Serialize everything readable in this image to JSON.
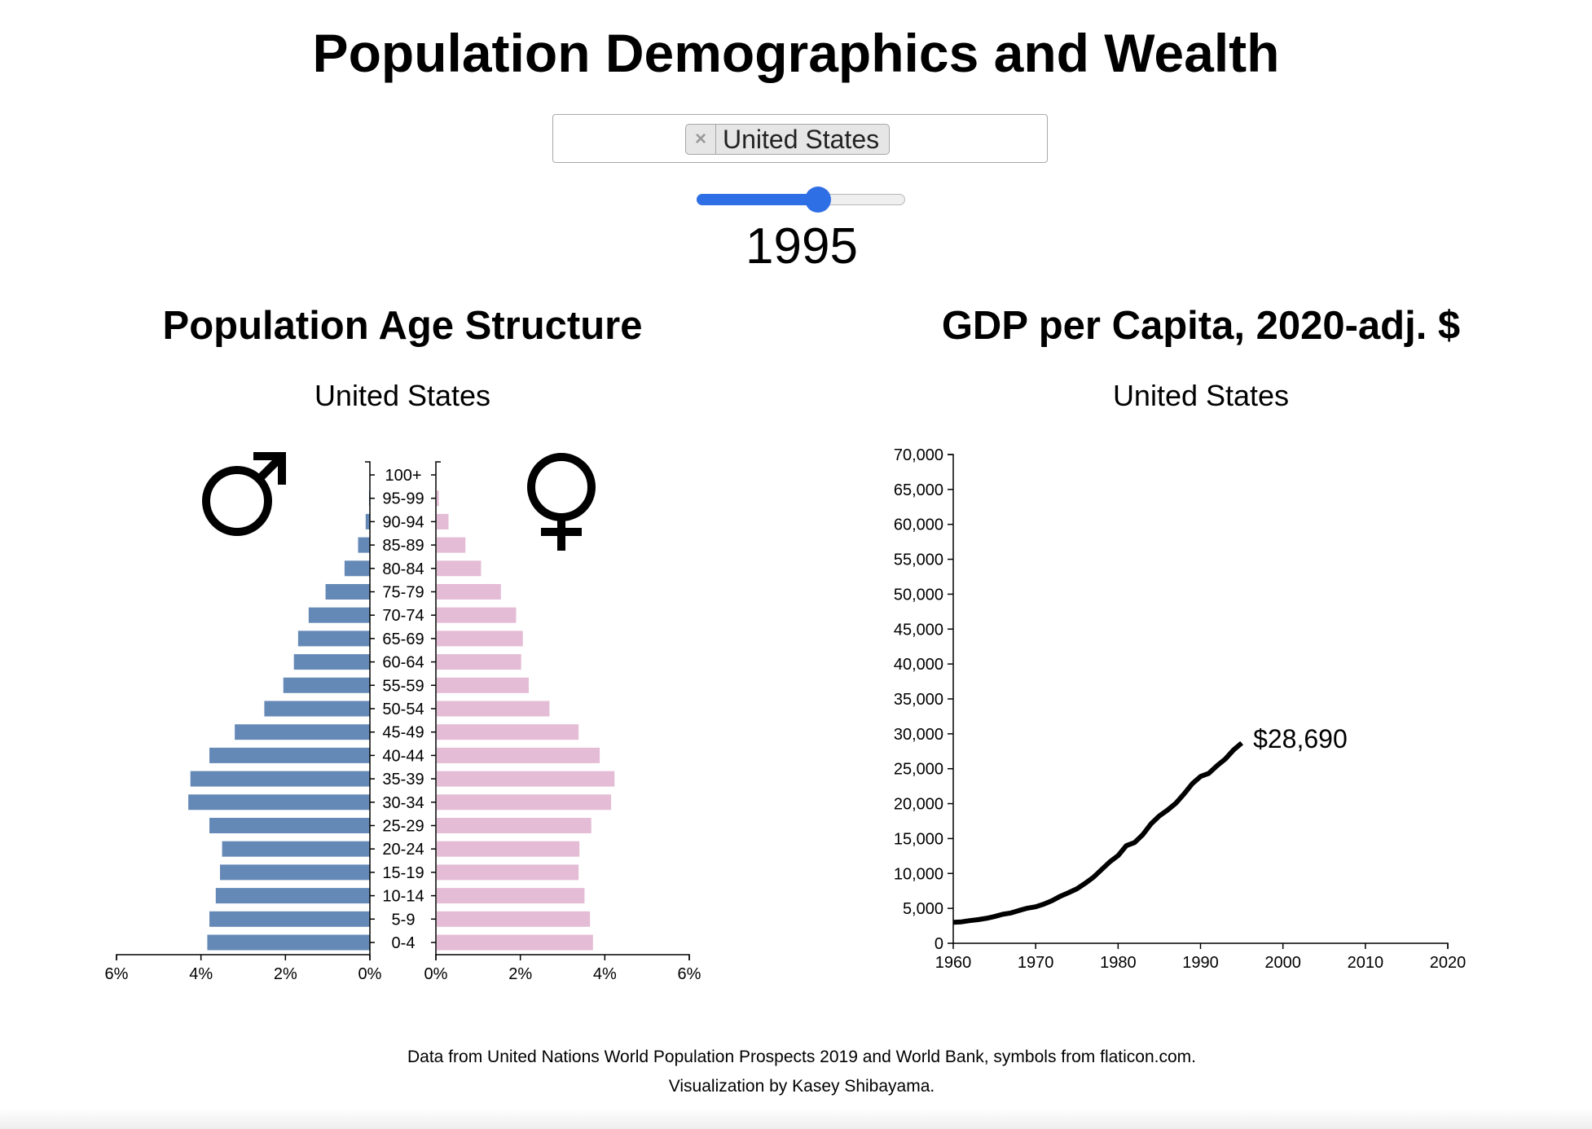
{
  "page": {
    "title": "Population Demographics and Wealth",
    "selected_country": "United States",
    "chip_remove_glyph": "×",
    "year": "1995",
    "slider": {
      "min": 1960,
      "max": 2020,
      "value": 1995
    }
  },
  "pyramid": {
    "title": "Population Age Structure",
    "subtitle": "United States",
    "male_symbol": "male-symbol-icon",
    "female_symbol": "female-symbol-icon"
  },
  "gdp": {
    "title": "GDP per Capita, 2020-adj. $",
    "subtitle": "United States",
    "end_label": "$28,690"
  },
  "footer": {
    "line1": "Data from United Nations World Population Prospects 2019 and World Bank, symbols from flaticon.com.",
    "line2": "Visualization by Kasey Shibayama."
  },
  "chart_data": [
    {
      "type": "bar",
      "title": "Population Age Structure",
      "subtitle": "United States",
      "categories": [
        "0-4",
        "5-9",
        "10-14",
        "15-19",
        "20-24",
        "25-29",
        "30-34",
        "35-39",
        "40-44",
        "45-49",
        "50-54",
        "55-59",
        "60-64",
        "65-69",
        "70-74",
        "75-79",
        "80-84",
        "85-89",
        "90-94",
        "95-99",
        "100+"
      ],
      "series": [
        {
          "name": "male",
          "values": [
            3.85,
            3.8,
            3.65,
            3.55,
            3.5,
            3.8,
            4.3,
            4.25,
            3.8,
            3.2,
            2.5,
            2.05,
            1.8,
            1.7,
            1.45,
            1.05,
            0.6,
            0.28,
            0.1,
            0.02,
            0.0
          ]
        },
        {
          "name": "female",
          "values": [
            3.7,
            3.63,
            3.5,
            3.36,
            3.38,
            3.66,
            4.13,
            4.21,
            3.86,
            3.36,
            2.67,
            2.18,
            2.0,
            2.04,
            1.88,
            1.52,
            1.05,
            0.68,
            0.28,
            0.05,
            0.0
          ]
        }
      ],
      "x_ticks": [
        "6%",
        "4%",
        "2%",
        "0%",
        "0%",
        "2%",
        "4%",
        "6%"
      ],
      "xlim": [
        0,
        6
      ],
      "colors": {
        "male": "#6589b6",
        "female": "#e4bcd5"
      }
    },
    {
      "type": "line",
      "title": "GDP per Capita, 2020-adj. $",
      "subtitle": "United States",
      "x": [
        1960,
        1961,
        1962,
        1963,
        1964,
        1965,
        1966,
        1967,
        1968,
        1969,
        1970,
        1971,
        1972,
        1973,
        1974,
        1975,
        1976,
        1977,
        1978,
        1979,
        1980,
        1981,
        1982,
        1983,
        1984,
        1985,
        1986,
        1987,
        1988,
        1989,
        1990,
        1991,
        1992,
        1993,
        1994,
        1995
      ],
      "y": [
        3000,
        3070,
        3240,
        3380,
        3570,
        3830,
        4150,
        4340,
        4700,
        5030,
        5230,
        5610,
        6110,
        6740,
        7240,
        7800,
        8590,
        9450,
        10560,
        11670,
        12550,
        13980,
        14430,
        15560,
        17120,
        18240,
        19080,
        20060,
        21400,
        22850,
        23890,
        24340,
        25420,
        26390,
        27690,
        28690
      ],
      "end_label": "$28,690",
      "xlim": [
        1960,
        2020
      ],
      "ylim": [
        0,
        70000
      ],
      "x_ticks": [
        "1960",
        "1970",
        "1980",
        "1990",
        "2000",
        "2010",
        "2020"
      ],
      "y_ticks": [
        "0",
        "5,000",
        "10,000",
        "15,000",
        "20,000",
        "25,000",
        "30,000",
        "35,000",
        "40,000",
        "45,000",
        "50,000",
        "55,000",
        "60,000",
        "65,000",
        "70,000"
      ],
      "color": "#000000"
    }
  ]
}
